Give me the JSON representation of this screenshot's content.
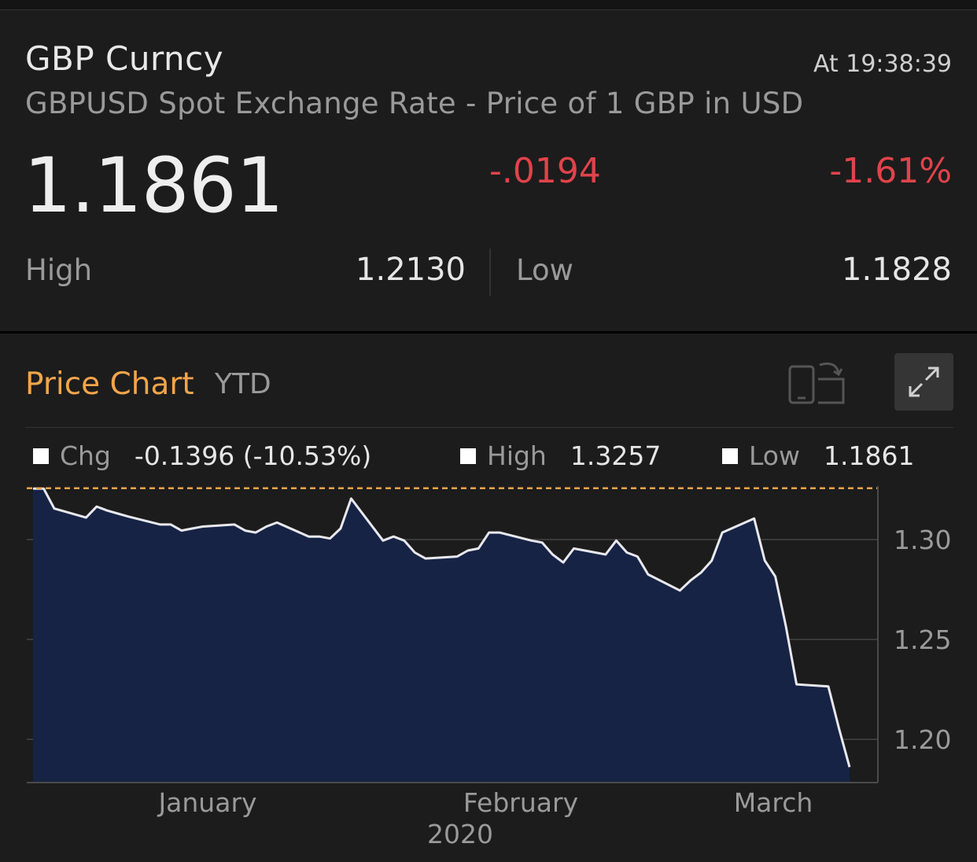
{
  "quote": {
    "ticker": "GBP Curncy",
    "time": "At 19:38:39",
    "description": "GBPUSD Spot Exchange Rate - Price of 1 GBP in USD",
    "price": "1.1861",
    "change": "-.0194",
    "change_pct": "-1.61%",
    "high_label": "High",
    "high_value": "1.2130",
    "low_label": "Low",
    "low_value": "1.1828"
  },
  "chart_header": {
    "title": "Price Chart",
    "range": "YTD",
    "rotate_icon": "rotate-device-icon",
    "expand_icon": "expand-icon"
  },
  "legend": {
    "chg_label": "Chg",
    "chg_value": "-0.1396 (-10.53%)",
    "high_label": "High",
    "high_value": "1.3257",
    "low_label": "Low",
    "low_value": "1.1861"
  },
  "colors": {
    "accent": "#f2a54a",
    "negative": "#e0434b",
    "area_fill": "#162345",
    "line": "#e8e8ee",
    "background": "#1c1c1c"
  },
  "chart_data": {
    "type": "area",
    "x_start": "2020-01-01",
    "x_end": "2020-03-18",
    "ylim": [
      1.18,
      1.325
    ],
    "yticks": [
      1.2,
      1.25,
      1.3
    ],
    "ytick_labels": [
      "1.30",
      "1.25",
      "1.20"
    ],
    "xtick_labels": [
      "January",
      "February",
      "March"
    ],
    "x_caption": "2020",
    "reference_line": 1.3257,
    "grid": true,
    "series": [
      {
        "dates": [
          "2020-01-01",
          "2020-01-02",
          "2020-01-03",
          "2020-01-06",
          "2020-01-07",
          "2020-01-08",
          "2020-01-09",
          "2020-01-10",
          "2020-01-13",
          "2020-01-14",
          "2020-01-15",
          "2020-01-16",
          "2020-01-17",
          "2020-01-20",
          "2020-01-21",
          "2020-01-22",
          "2020-01-23",
          "2020-01-24",
          "2020-01-27",
          "2020-01-28",
          "2020-01-29",
          "2020-01-30",
          "2020-01-31",
          "2020-02-03",
          "2020-02-04",
          "2020-02-05",
          "2020-02-06",
          "2020-02-07",
          "2020-02-10",
          "2020-02-11",
          "2020-02-12",
          "2020-02-13",
          "2020-02-14",
          "2020-02-17",
          "2020-02-18",
          "2020-02-19",
          "2020-02-20",
          "2020-02-21",
          "2020-02-24",
          "2020-02-25",
          "2020-02-26",
          "2020-02-27",
          "2020-02-28",
          "2020-03-02",
          "2020-03-03",
          "2020-03-04",
          "2020-03-05",
          "2020-03-06",
          "2020-03-09",
          "2020-03-10",
          "2020-03-11",
          "2020-03-12",
          "2020-03-13",
          "2020-03-16",
          "2020-03-17",
          "2020-03-18"
        ],
        "values": [
          1.3255,
          1.3255,
          1.3155,
          1.311,
          1.3165,
          1.3145,
          1.313,
          1.3115,
          1.3075,
          1.3075,
          1.3045,
          1.3055,
          1.3065,
          1.3075,
          1.3045,
          1.3035,
          1.3065,
          1.3085,
          1.3015,
          1.3015,
          1.3005,
          1.3055,
          1.3205,
          1.2995,
          1.3015,
          1.2995,
          1.2935,
          1.2905,
          1.2915,
          1.2945,
          1.2955,
          1.3035,
          1.3035,
          1.2995,
          1.2985,
          1.2925,
          1.2885,
          1.2955,
          1.2925,
          1.2995,
          1.2935,
          1.2915,
          1.2825,
          1.2745,
          1.2795,
          1.2835,
          1.2895,
          1.3035,
          1.3105,
          1.2895,
          1.2815,
          1.2565,
          1.2275,
          1.2265,
          1.2055,
          1.1861
        ]
      }
    ]
  }
}
